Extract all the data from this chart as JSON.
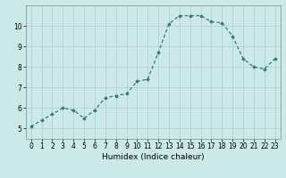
{
  "x": [
    0,
    1,
    2,
    3,
    4,
    5,
    6,
    7,
    8,
    9,
    10,
    11,
    12,
    13,
    14,
    15,
    16,
    17,
    18,
    19,
    20,
    21,
    22,
    23
  ],
  "y": [
    5.1,
    5.4,
    5.7,
    6.0,
    5.9,
    5.5,
    5.9,
    6.5,
    6.6,
    6.7,
    7.3,
    7.4,
    8.7,
    10.1,
    10.5,
    10.5,
    10.5,
    10.2,
    10.15,
    9.5,
    8.4,
    8.0,
    7.9,
    8.4
  ],
  "line_color": "#2e7d6e",
  "marker": "D",
  "marker_size": 1.8,
  "bg_color": "#cce9e9",
  "grid_color": "#b0cccc",
  "xlabel": "Humidex (Indice chaleur)",
  "xlim": [
    -0.5,
    23.5
  ],
  "ylim": [
    4.5,
    11.0
  ],
  "yticks": [
    5,
    6,
    7,
    8,
    9,
    10
  ],
  "xticks": [
    0,
    1,
    2,
    3,
    4,
    5,
    6,
    7,
    8,
    9,
    10,
    11,
    12,
    13,
    14,
    15,
    16,
    17,
    18,
    19,
    20,
    21,
    22,
    23
  ],
  "xlabel_fontsize": 6.5,
  "tick_fontsize": 5.5,
  "line_width": 0.9
}
